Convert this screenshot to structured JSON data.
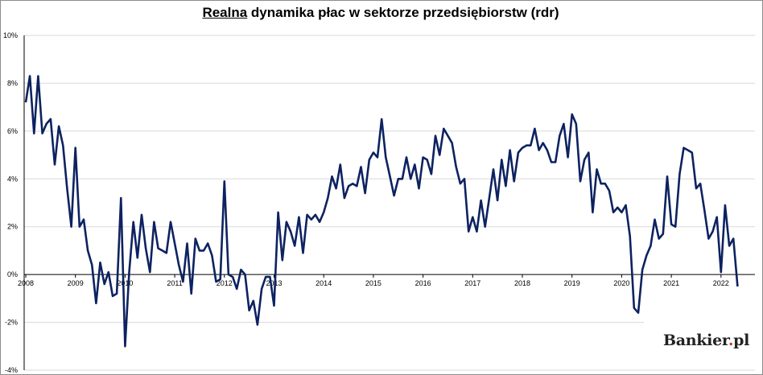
{
  "title_underlined": "Realna",
  "title_rest": " dynamika płac w sektorze przedsiębiorstw (rdr)",
  "logo": {
    "name": "Bankier",
    "dot": ".",
    "tld": "pl"
  },
  "colors": {
    "line": "#0d2260",
    "grid": "#d9d9d9",
    "axis": "#000000"
  },
  "chart_data": {
    "type": "line",
    "title": "Realna dynamika płac w sektorze przedsiębiorstw (rdr)",
    "ylim": [
      -4,
      10
    ],
    "y_ticks": [
      "-4%",
      "-2%",
      "0%",
      "2%",
      "4%",
      "6%",
      "8%",
      "10%"
    ],
    "y_tick_values": [
      -4,
      -2,
      0,
      2,
      4,
      6,
      8,
      10
    ],
    "x_ticks": [
      "2008",
      "2009",
      "2010",
      "2011",
      "2012",
      "2013",
      "2014",
      "2015",
      "2016",
      "2017",
      "2018",
      "2019",
      "2020",
      "2021",
      "2022"
    ],
    "grid": "horizontal",
    "x_start": "2008-01",
    "frequency": "monthly",
    "series": [
      {
        "values": [
          7.2,
          8.3,
          5.9,
          8.3,
          5.9,
          6.3,
          6.5,
          4.6,
          6.2,
          5.4,
          3.6,
          2.0,
          5.3,
          2.0,
          2.3,
          1.0,
          0.4,
          -1.2,
          0.5,
          -0.4,
          0.1,
          -0.9,
          -0.8,
          3.2,
          -3.0,
          0.1,
          2.2,
          0.7,
          2.5,
          1.1,
          0.1,
          2.2,
          1.1,
          1.0,
          0.9,
          2.2,
          1.3,
          0.4,
          -0.3,
          1.3,
          -0.8,
          1.5,
          1.0,
          1.0,
          1.3,
          0.8,
          -0.3,
          -0.2,
          3.9,
          0.0,
          -0.1,
          -0.6,
          0.2,
          0.0,
          -1.5,
          -1.1,
          -2.1,
          -0.6,
          -0.1,
          -0.1,
          -1.3,
          2.6,
          0.6,
          2.2,
          1.8,
          1.2,
          2.4,
          0.9,
          2.5,
          2.3,
          2.5,
          2.2,
          2.6,
          3.2,
          4.1,
          3.6,
          4.6,
          3.2,
          3.7,
          3.8,
          3.7,
          4.5,
          3.4,
          4.8,
          5.1,
          4.9,
          6.5,
          4.9,
          4.1,
          3.3,
          4.0,
          4.0,
          4.9,
          4.0,
          4.6,
          3.6,
          4.9,
          4.8,
          4.2,
          5.8,
          5.0,
          6.1,
          5.8,
          5.5,
          4.5,
          3.8,
          4.0,
          1.8,
          2.4,
          1.8,
          3.1,
          2.0,
          3.2,
          4.4,
          3.1,
          4.8,
          3.7,
          5.2,
          3.9,
          5.1,
          5.3,
          5.4,
          5.4,
          6.1,
          5.2,
          5.5,
          5.2,
          4.7,
          4.7,
          5.8,
          6.3,
          4.9,
          6.7,
          6.3,
          3.9,
          4.8,
          5.1,
          2.6,
          4.4,
          3.8,
          3.8,
          3.5,
          2.6,
          2.8,
          2.6,
          2.9,
          1.6,
          -1.4,
          -1.6,
          0.2,
          0.8,
          1.2,
          2.3,
          1.5,
          1.7,
          4.1,
          2.1,
          2.0,
          4.2,
          5.3,
          5.2,
          5.1,
          3.6,
          3.8,
          2.7,
          1.5,
          1.8,
          2.4,
          0.1,
          2.9,
          1.2,
          1.5,
          -0.5
        ]
      }
    ]
  }
}
